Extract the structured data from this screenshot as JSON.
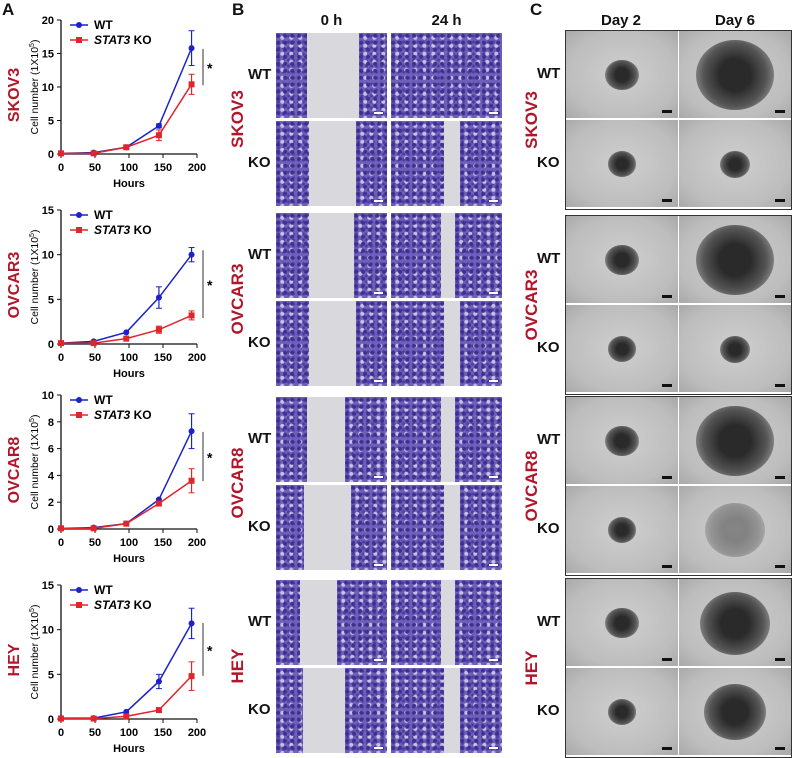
{
  "panels": {
    "a": "A",
    "b": "B",
    "c": "C"
  },
  "panel_b": {
    "columns": [
      "0 h",
      "24 h"
    ],
    "rows": [
      "WT",
      "KO"
    ]
  },
  "panel_c": {
    "columns": [
      "Day 2",
      "Day 6"
    ],
    "rows": [
      "WT",
      "KO"
    ]
  },
  "cell_lines": [
    "SKOV3",
    "OVCAR3",
    "OVCAR8",
    "HEY"
  ],
  "colors": {
    "wt": "#1a22c8",
    "ko": "#e0262a",
    "cell_line_label": "#b3162a"
  },
  "chart_data": [
    {
      "type": "line",
      "cell_line": "SKOV3",
      "xlabel": "Hours",
      "ylabel": "Cell number (1X10^5)",
      "ylabel_main": "Cell number (1X10",
      "ylabel_sup": "5",
      "ylabel_end": ")",
      "xlim": [
        0,
        200
      ],
      "xticks": [
        0,
        50,
        100,
        150,
        200
      ],
      "ylim": [
        0,
        20
      ],
      "yticks": [
        0,
        5,
        10,
        15,
        20
      ],
      "legend": "top-left",
      "significance": "*",
      "x": [
        0,
        48,
        96,
        144,
        192
      ],
      "series": [
        {
          "name": "WT",
          "marker": "circle",
          "values": [
            0.1,
            0.2,
            1.0,
            4.2,
            15.8
          ],
          "error": [
            0,
            0.1,
            0.2,
            0.3,
            2.6
          ]
        },
        {
          "name": "STAT3 KO",
          "name_italic": "STAT3",
          "name_rest": " KO",
          "marker": "square",
          "values": [
            0.1,
            0.1,
            1.0,
            2.8,
            10.4
          ],
          "error": [
            0,
            0.1,
            0.2,
            0.8,
            1.5
          ]
        }
      ]
    },
    {
      "type": "line",
      "cell_line": "OVCAR3",
      "xlabel": "Hours",
      "ylabel_main": "Cell number (1X10",
      "ylabel_sup": "5",
      "ylabel_end": ")",
      "xlim": [
        0,
        200
      ],
      "xticks": [
        0,
        50,
        100,
        150,
        200
      ],
      "ylim": [
        0,
        15
      ],
      "yticks": [
        0,
        5,
        10,
        15
      ],
      "legend": "top-left",
      "significance": "*",
      "x": [
        0,
        48,
        96,
        144,
        192
      ],
      "series": [
        {
          "name": "WT",
          "marker": "circle",
          "values": [
            0.1,
            0.3,
            1.3,
            5.2,
            10.0
          ],
          "error": [
            0,
            0.1,
            0.1,
            1.2,
            0.8
          ]
        },
        {
          "name": "STAT3 KO",
          "name_italic": "STAT3",
          "name_rest": " KO",
          "marker": "square",
          "values": [
            0.1,
            0.1,
            0.6,
            1.6,
            3.2
          ],
          "error": [
            0,
            0.1,
            0.1,
            0.4,
            0.5
          ]
        }
      ]
    },
    {
      "type": "line",
      "cell_line": "OVCAR8",
      "xlabel": "Hours",
      "ylabel_main": "Cell number (1X10",
      "ylabel_sup": "5",
      "ylabel_end": ")",
      "xlim": [
        0,
        200
      ],
      "xticks": [
        0,
        50,
        100,
        150,
        200
      ],
      "ylim": [
        0,
        10
      ],
      "yticks": [
        0,
        2,
        4,
        6,
        8,
        10
      ],
      "legend": "top-left",
      "significance": "*",
      "x": [
        0,
        48,
        96,
        144,
        192
      ],
      "series": [
        {
          "name": "WT",
          "marker": "circle",
          "values": [
            0.05,
            0.1,
            0.4,
            2.2,
            7.3
          ],
          "error": [
            0,
            0.05,
            0.1,
            0.1,
            1.3
          ]
        },
        {
          "name": "STAT3 KO",
          "name_italic": "STAT3",
          "name_rest": " KO",
          "marker": "square",
          "values": [
            0.05,
            0.05,
            0.4,
            1.9,
            3.6
          ],
          "error": [
            0,
            0.05,
            0.1,
            0.1,
            0.9
          ]
        }
      ]
    },
    {
      "type": "line",
      "cell_line": "HEY",
      "xlabel": "Hours",
      "ylabel_main": "Cell number (1X10",
      "ylabel_sup": "5",
      "ylabel_end": ")",
      "xlim": [
        0,
        200
      ],
      "xticks": [
        0,
        50,
        100,
        150,
        200
      ],
      "ylim": [
        0,
        15
      ],
      "yticks": [
        0,
        5,
        10,
        15
      ],
      "legend": "top-left",
      "significance": "*",
      "x": [
        0,
        48,
        96,
        144,
        192
      ],
      "series": [
        {
          "name": "WT",
          "marker": "circle",
          "values": [
            0.1,
            0.1,
            0.8,
            4.2,
            10.7
          ],
          "error": [
            0,
            0.1,
            0.1,
            0.8,
            1.7
          ]
        },
        {
          "name": "STAT3 KO",
          "name_italic": "STAT3",
          "name_rest": " KO",
          "marker": "square",
          "values": [
            0.05,
            0.05,
            0.3,
            1.0,
            4.8
          ],
          "error": [
            0,
            0.05,
            0.1,
            0.2,
            1.6
          ]
        }
      ]
    }
  ]
}
